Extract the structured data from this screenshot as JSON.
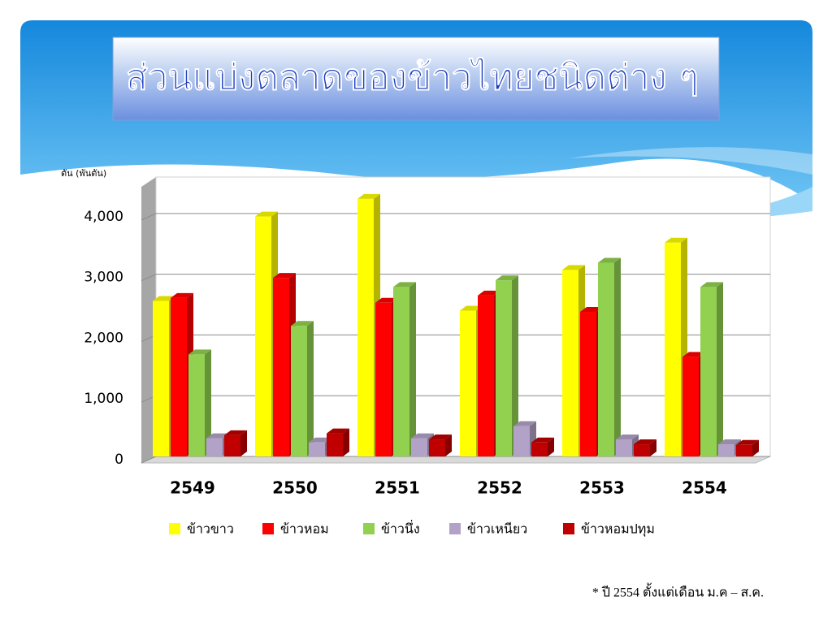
{
  "chart_data": {
    "type": "bar",
    "title": "ส่วนแบ่งตลาดของข้าวไทยชนิดต่าง ๆ",
    "y_label": "ตัน (พันตัน)",
    "footnote": "* ปี 2554 ตั้งแต่เดือน ม.ค – ส.ค.",
    "categories": [
      "2549",
      "2550",
      "2551",
      "2552",
      "2553",
      "2554"
    ],
    "series": [
      {
        "name": "ข้าวขาว",
        "color": "#ffff00",
        "values": [
          2560,
          3950,
          4240,
          2400,
          3070,
          3520
        ]
      },
      {
        "name": "ข้าวหอม",
        "color": "#ff0000",
        "values": [
          2610,
          2940,
          2530,
          2650,
          2380,
          1640
        ]
      },
      {
        "name": "ข้าวนึ่ง",
        "color": "#92d050",
        "values": [
          1680,
          2150,
          2790,
          2900,
          3190,
          2790
        ]
      },
      {
        "name": "ข้าวเหนียว",
        "color": "#b3a2c7",
        "values": [
          300,
          230,
          300,
          500,
          280,
          200
        ]
      },
      {
        "name": "ข้าวหอมปทุม",
        "color": "#c00000",
        "values": [
          350,
          380,
          280,
          230,
          200,
          190
        ]
      }
    ],
    "ylim": [
      0,
      4600
    ],
    "yticks": [
      0,
      {
        "value": 1000,
        "label": "1,000"
      },
      {
        "value": 2000,
        "label": "2,000"
      },
      {
        "value": 3000,
        "label": "3,000"
      },
      {
        "value": 4000,
        "label": "4,000"
      }
    ],
    "grid": true
  }
}
